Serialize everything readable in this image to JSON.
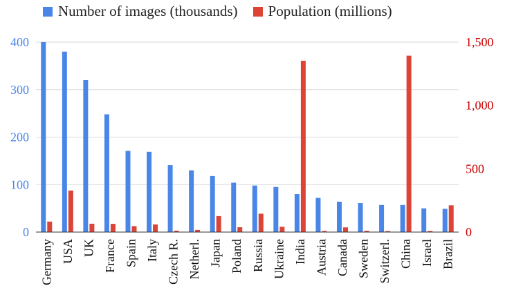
{
  "chart_data": {
    "type": "bar",
    "categories": [
      "Germany",
      "USA",
      "UK",
      "France",
      "Spain",
      "Italy",
      "Czech R.",
      "Netherl.",
      "Japan",
      "Poland",
      "Russia",
      "Ukraine",
      "India",
      "Austria",
      "Canada",
      "Sweden",
      "Switzerl.",
      "China",
      "Israel",
      "Brazil"
    ],
    "series": [
      {
        "name": "Number of images (thousands)",
        "axis": "left",
        "color": "#4a86e8",
        "values": [
          400,
          380,
          320,
          248,
          171,
          169,
          141,
          130,
          118,
          104,
          98,
          95,
          80,
          72,
          64,
          61,
          57,
          57,
          50,
          49
        ]
      },
      {
        "name": "Population (millions)",
        "axis": "right",
        "color": "#db4437",
        "values": [
          83,
          328,
          66,
          65,
          47,
          60,
          11,
          17,
          126,
          38,
          145,
          42,
          1353,
          9,
          37,
          10,
          8,
          1393,
          9,
          211
        ]
      }
    ],
    "y_left": {
      "ylim": [
        0,
        400
      ],
      "ticks": [
        "0",
        "100",
        "200",
        "300",
        "400"
      ],
      "tick_values": [
        0,
        100,
        200,
        300,
        400
      ],
      "color": "#4a86e8"
    },
    "y_right": {
      "ylim": [
        0,
        1500
      ],
      "ticks": [
        "0",
        "500",
        "1,000",
        "1,500"
      ],
      "tick_values": [
        0,
        500,
        1000,
        1500
      ],
      "color": "#cc0000"
    },
    "grid": true,
    "legend_position": "top"
  }
}
